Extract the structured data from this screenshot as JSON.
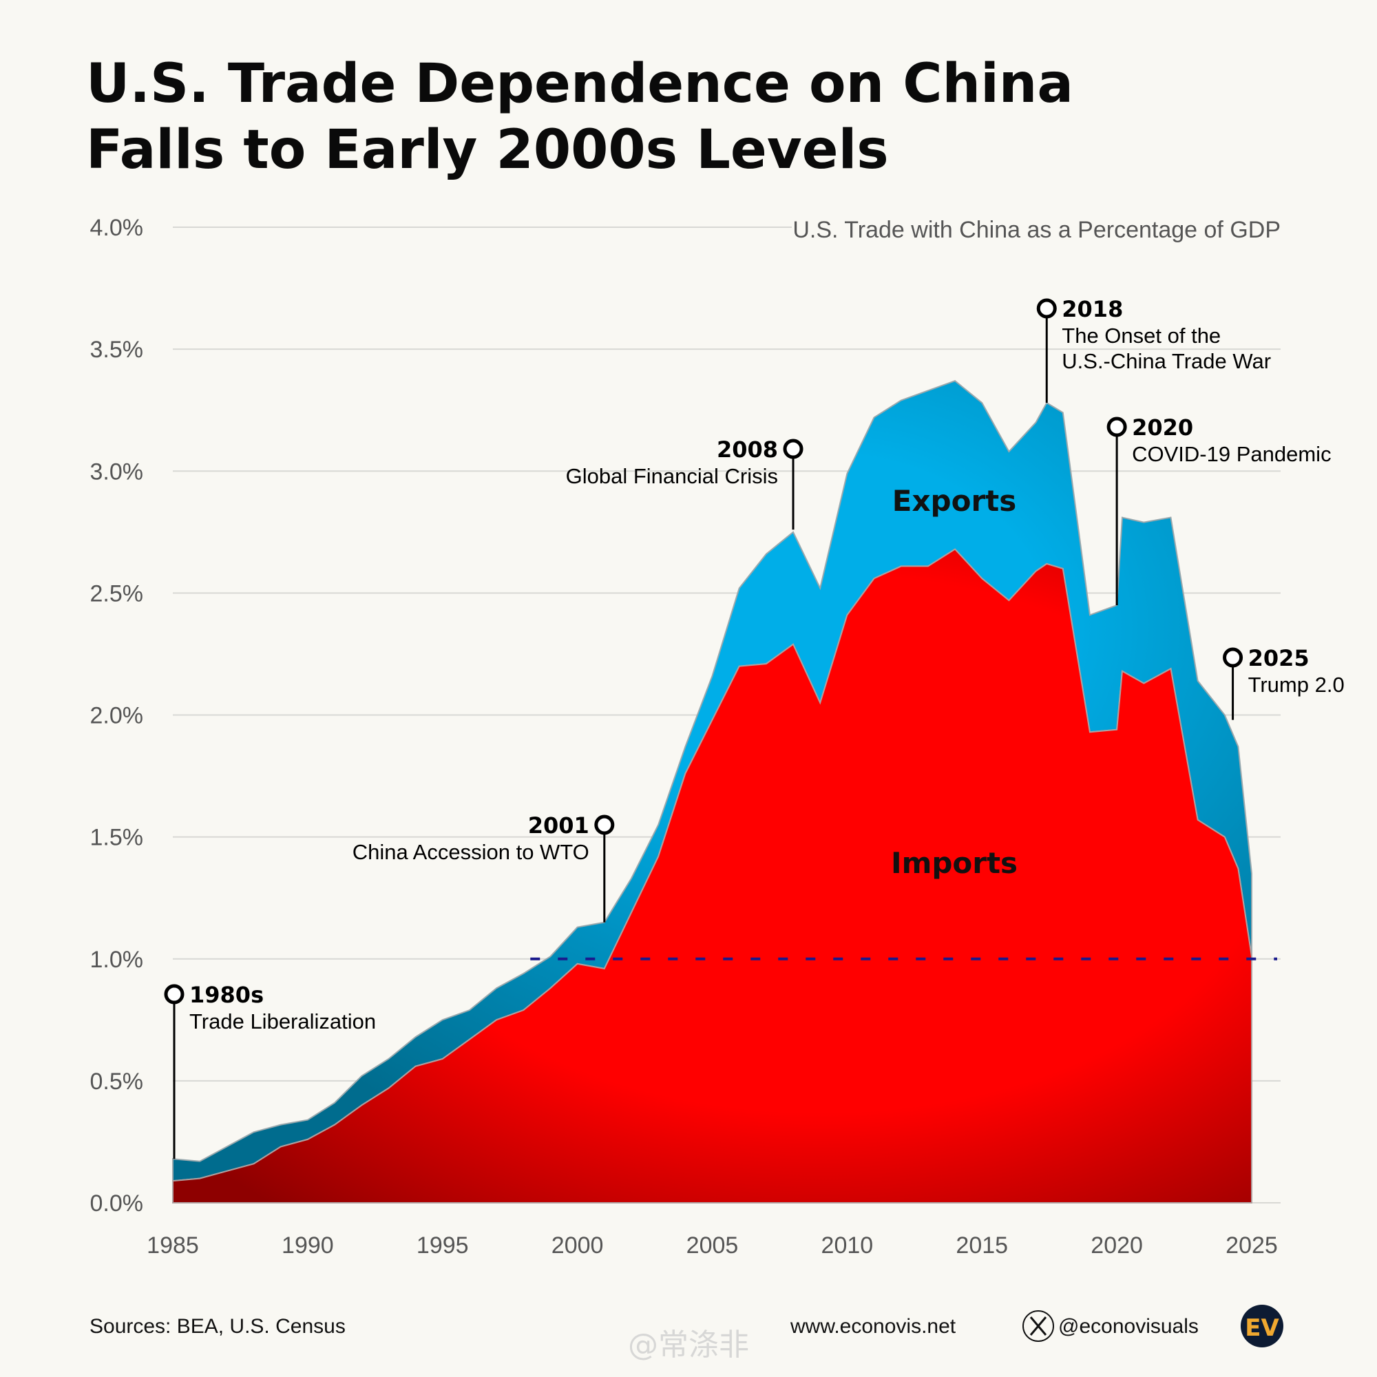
{
  "title": {
    "line1": "U.S. Trade Dependence on China",
    "line2": "Falls to Early 2000s Levels"
  },
  "chart_data": {
    "type": "area",
    "stacked": true,
    "subtitle": "U.S. Trade with China as a Percentage of GDP",
    "x": [
      1985,
      1986,
      1987,
      1988,
      1989,
      1990,
      1991,
      1992,
      1993,
      1994,
      1995,
      1996,
      1997,
      1998,
      1999,
      2000,
      2001,
      2002,
      2003,
      2004,
      2005,
      2006,
      2007,
      2008,
      2009,
      2010,
      2011,
      2012,
      2013,
      2014,
      2015,
      2016,
      2017,
      2017.4,
      2018,
      2019,
      2020,
      2020.2,
      2021,
      2022,
      2023,
      2024,
      2024.5,
      2025
    ],
    "series": [
      {
        "name": "Imports",
        "color": "#ff0000",
        "values": [
          0.09,
          0.1,
          0.13,
          0.16,
          0.23,
          0.26,
          0.32,
          0.4,
          0.47,
          0.56,
          0.59,
          0.67,
          0.75,
          0.79,
          0.88,
          0.98,
          0.96,
          1.19,
          1.42,
          1.76,
          1.98,
          2.2,
          2.21,
          2.29,
          2.05,
          2.41,
          2.56,
          2.61,
          2.61,
          2.68,
          2.56,
          2.47,
          2.59,
          2.62,
          2.6,
          1.93,
          1.94,
          2.18,
          2.13,
          2.19,
          1.57,
          1.5,
          1.37,
          1.01
        ]
      },
      {
        "name": "Exports",
        "color": "#00aee8",
        "values": [
          0.09,
          0.07,
          0.1,
          0.13,
          0.09,
          0.08,
          0.09,
          0.12,
          0.12,
          0.12,
          0.16,
          0.12,
          0.13,
          0.15,
          0.13,
          0.15,
          0.19,
          0.14,
          0.13,
          0.11,
          0.18,
          0.32,
          0.45,
          0.46,
          0.47,
          0.58,
          0.66,
          0.68,
          0.72,
          0.69,
          0.72,
          0.61,
          0.61,
          0.66,
          0.64,
          0.48,
          0.51,
          0.63,
          0.66,
          0.62,
          0.57,
          0.5,
          0.5,
          0.34
        ]
      }
    ],
    "xlim": [
      1985,
      2025
    ],
    "ylim": [
      0,
      4.0
    ],
    "x_ticks": [
      "1985",
      "1990",
      "1995",
      "2000",
      "2005",
      "2010",
      "2015",
      "2020",
      "2025"
    ],
    "y_ticks": [
      "0.0%",
      "0.5%",
      "1.0%",
      "1.5%",
      "2.0%",
      "2.5%",
      "3.0%",
      "3.5%",
      "4.0%"
    ],
    "grid": true,
    "reference_line": {
      "y": 1.0,
      "x_from": 1998,
      "x_to": 2026,
      "style": "dashed",
      "color": "#1a1a8c"
    },
    "annotations": [
      {
        "year": "1980s",
        "text": [
          "Trade Liberalization"
        ],
        "x": 1985,
        "y": 0.18
      },
      {
        "year": "2001",
        "text": [
          "China Accession to WTO"
        ],
        "x": 2001,
        "y": 1.15
      },
      {
        "year": "2008",
        "text": [
          "Global Financial Crisis"
        ],
        "x": 2008,
        "y": 2.76
      },
      {
        "year": "2018",
        "text": [
          "The Onset of the",
          "U.S.-China Trade War"
        ],
        "x": 2017.4,
        "y": 3.28
      },
      {
        "year": "2020",
        "text": [
          "COVID-19 Pandemic"
        ],
        "x": 2020,
        "y": 2.45
      },
      {
        "year": "2025",
        "text": [
          "Trump 2.0"
        ],
        "x": 2024.3,
        "y": 1.98
      }
    ]
  },
  "footer": {
    "sources": "Sources: BEA, U.S. Census",
    "website": "www.econovis.net",
    "social": "@econovisuals",
    "social_icon": "x-logo-icon",
    "logo": "EV",
    "watermark": "@常涤非"
  }
}
